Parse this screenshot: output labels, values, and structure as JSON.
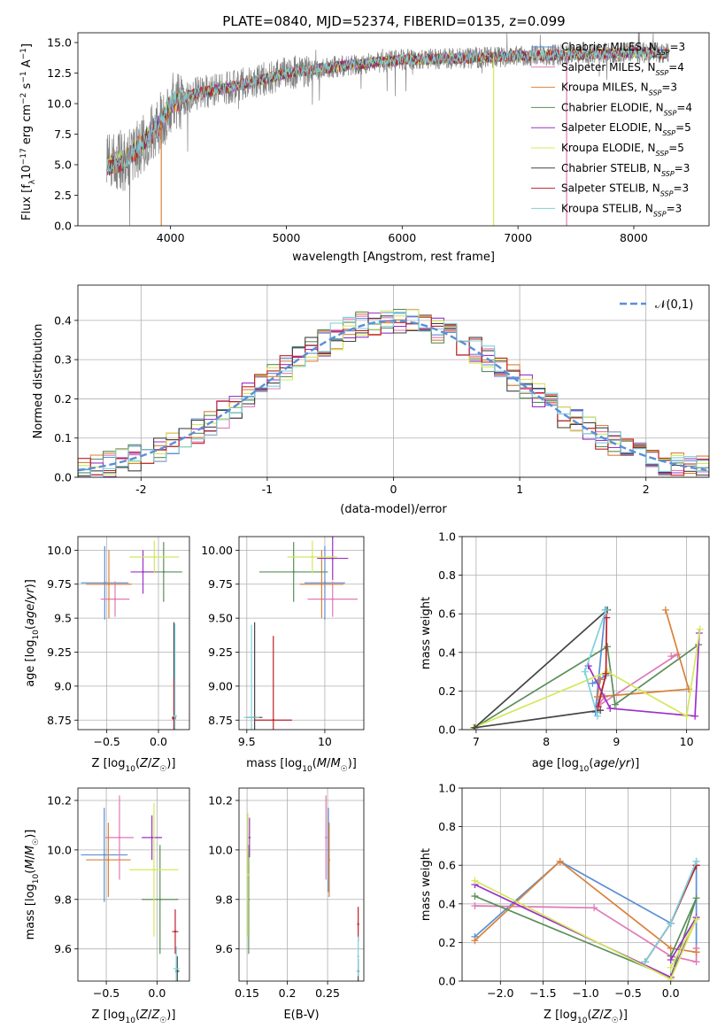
{
  "figure_title": "PLATE=0840, MJD=52374, FIBERID=0135, z=0.099",
  "colors": {
    "Chabrier MILES": "#5b8fd6",
    "Salpeter MILES": "#e07ab6",
    "Kroupa MILES": "#d9823b",
    "Chabrier ELODIE": "#5a8f5a",
    "Salpeter ELODIE": "#9b30c8",
    "Kroupa ELODIE": "#d4e85a",
    "Chabrier STELIB": "#444444",
    "Salpeter STELIB": "#c0202a",
    "Kroupa STELIB": "#7fd1dc",
    "data": "#808080",
    "normal_fit": "#5b8fd6"
  },
  "chart_data": [
    {
      "id": "spectrum",
      "type": "line",
      "xlabel": "wavelength [Angstrom, rest frame]",
      "ylabel": "Flux [f_λ10^-17 erg cm^-2 s^-1 A^-1]",
      "xlim": [
        3200,
        8650
      ],
      "ylim": [
        0,
        15.8
      ],
      "xticks": [
        4000,
        5000,
        6000,
        7000,
        8000
      ],
      "yticks": [
        0.0,
        2.5,
        5.0,
        7.5,
        10.0,
        12.5,
        15.0
      ],
      "legend": "top-right",
      "legend_entries": [
        "Chabrier MILES, N_SSP=3",
        "Salpeter MILES, N_SSP=4",
        "Kroupa MILES, N_SSP=3",
        "Chabrier ELODIE, N_SSP=4",
        "Salpeter ELODIE, N_SSP=5",
        "Kroupa ELODIE, N_SSP=5",
        "Chabrier STELIB, N_SSP=3",
        "Salpeter STELIB, N_SSP=3",
        "Kroupa STELIB, N_SSP=3"
      ],
      "continuum": {
        "x": [
          3450,
          3600,
          3700,
          3800,
          3900,
          4000,
          4200,
          4500,
          4800,
          5000,
          5500,
          6000,
          6500,
          7000,
          7500,
          8000,
          8300
        ],
        "y": [
          4.9,
          5.4,
          6.2,
          7.2,
          8.2,
          10.0,
          10.8,
          11.3,
          12.0,
          12.5,
          13.1,
          13.6,
          13.7,
          13.9,
          14.0,
          14.2,
          14.1
        ]
      },
      "data_range": [
        3450,
        8300
      ],
      "dropouts": [
        {
          "x": 3920,
          "series": "Kroupa MILES"
        },
        {
          "x": 6790,
          "series": "Kroupa ELODIE"
        },
        {
          "x": 7420,
          "series": "Salpeter MILES"
        }
      ]
    },
    {
      "id": "residuals",
      "type": "line",
      "xlabel": "(data-model)/error",
      "ylabel": "Normed distribution",
      "xlim": [
        -2.5,
        2.5
      ],
      "ylim": [
        0,
        0.49
      ],
      "xticks": [
        -2,
        -1,
        0,
        1,
        2
      ],
      "yticks": [
        0.0,
        0.1,
        0.2,
        0.3,
        0.4
      ],
      "grid": true,
      "legend": "top-right",
      "legend_entries": [
        "𝒩(0,1)"
      ],
      "bin_width": 0.1,
      "normal_curve": {
        "mean": 0,
        "sigma": 1
      }
    },
    {
      "id": "Z_vs_age",
      "type": "scatter",
      "xlabel": "Z [log10(Z/Z☉)]",
      "ylabel": "age  [log10(age/yr)]",
      "xlim": [
        -0.78,
        0.3
      ],
      "ylim": [
        8.68,
        10.1
      ],
      "xticks": [
        -0.5,
        0.0
      ],
      "xtick_labels": [
        "−0.5",
        "0.0"
      ],
      "yticks": [
        8.75,
        9.0,
        9.25,
        9.5,
        9.75,
        10.0
      ],
      "grid": true,
      "points": [
        {
          "series": "Chabrier MILES",
          "x": -0.52,
          "xerr": 0.23,
          "y": 9.76,
          "yerr": 0.27
        },
        {
          "series": "Salpeter MILES",
          "x": -0.42,
          "xerr": 0.14,
          "y": 9.64,
          "yerr": 0.13
        },
        {
          "series": "Kroupa MILES",
          "x": -0.48,
          "xerr": 0.22,
          "y": 9.75,
          "yerr": 0.25
        },
        {
          "series": "Chabrier ELODIE",
          "x": 0.05,
          "xerr": 0.18,
          "y": 9.84,
          "yerr": 0.22
        },
        {
          "series": "Salpeter ELODIE",
          "x": -0.15,
          "xerr": 0.12,
          "y": 9.84,
          "yerr": 0.16
        },
        {
          "series": "Kroupa ELODIE",
          "x": -0.04,
          "xerr": 0.24,
          "y": 9.95,
          "yerr": 0.12
        },
        {
          "series": "Chabrier STELIB",
          "x": 0.15,
          "xerr": 0.02,
          "y": 8.77,
          "yerr": 0.7
        },
        {
          "series": "Salpeter STELIB",
          "x": 0.15,
          "xerr": 0.02,
          "y": 8.76,
          "yerr": 0.3
        },
        {
          "series": "Kroupa STELIB",
          "x": 0.16,
          "xerr": 0.02,
          "y": 8.78,
          "yerr": 0.68
        }
      ]
    },
    {
      "id": "mass_vs_age",
      "type": "scatter",
      "xlabel": "mass [log10(M/M☉)]",
      "ylabel": "",
      "xlim": [
        9.45,
        10.25
      ],
      "ylim": [
        8.68,
        10.1
      ],
      "xticks": [
        9.5,
        10.0
      ],
      "yticks": [
        8.75,
        9.0,
        9.25,
        9.5,
        9.75,
        10.0
      ],
      "ytick_labels": [
        "8.75",
        "9.00",
        "9.25",
        "9.50",
        "9.75",
        "10.00"
      ],
      "grid": true,
      "points": [
        {
          "series": "Chabrier MILES",
          "x": 10.0,
          "xerr": 0.13,
          "y": 9.76,
          "yerr": 0.27
        },
        {
          "series": "Salpeter MILES",
          "x": 10.05,
          "xerr": 0.16,
          "y": 9.64,
          "yerr": 0.13
        },
        {
          "series": "Kroupa MILES",
          "x": 9.98,
          "xerr": 0.14,
          "y": 9.75,
          "yerr": 0.25
        },
        {
          "series": "Chabrier ELODIE",
          "x": 9.8,
          "xerr": 0.22,
          "y": 9.84,
          "yerr": 0.22
        },
        {
          "series": "Salpeter ELODIE",
          "x": 10.05,
          "xerr": 0.1,
          "y": 9.94,
          "yerr": 0.16
        },
        {
          "series": "Kroupa ELODIE",
          "x": 9.92,
          "xerr": 0.16,
          "y": 9.95,
          "yerr": 0.12
        },
        {
          "series": "Chabrier STELIB",
          "x": 9.55,
          "xerr": 0.05,
          "y": 8.77,
          "yerr": 0.7
        },
        {
          "series": "Salpeter STELIB",
          "x": 9.67,
          "xerr": 0.12,
          "y": 8.75,
          "yerr": 0.62
        },
        {
          "series": "Kroupa STELIB",
          "x": 9.53,
          "xerr": 0.05,
          "y": 8.77,
          "yerr": 0.68
        }
      ]
    },
    {
      "id": "age_vs_weight",
      "type": "line",
      "xlabel": "age  [log10(age/yr)]",
      "ylabel": "mass weight",
      "xlim": [
        6.8,
        10.32
      ],
      "ylim": [
        0,
        1.0
      ],
      "xticks": [
        7,
        8,
        9,
        10
      ],
      "yticks": [
        0.0,
        0.2,
        0.4,
        0.6,
        0.8,
        1.0
      ],
      "grid": true,
      "series": [
        {
          "name": "Chabrier MILES",
          "x": [
            8.84,
            8.7,
            8.85,
            8.66
          ],
          "y": [
            0.62,
            0.09,
            0.28,
            0.24
          ]
        },
        {
          "name": "Salpeter MILES",
          "x": [
            9.78,
            9.87,
            8.73,
            8.83
          ],
          "y": [
            0.38,
            0.39,
            0.12,
            0.17
          ]
        },
        {
          "name": "Kroupa MILES",
          "x": [
            9.7,
            10.03,
            8.73,
            8.77
          ],
          "y": [
            0.62,
            0.21,
            0.17,
            0.26
          ]
        },
        {
          "name": "Chabrier ELODIE",
          "x": [
            10.17,
            8.98,
            8.87,
            6.98
          ],
          "y": [
            0.44,
            0.13,
            0.43,
            0.01
          ]
        },
        {
          "name": "Salpeter ELODIE",
          "x": [
            10.18,
            10.12,
            8.91,
            8.6
          ],
          "y": [
            0.5,
            0.07,
            0.11,
            0.33
          ]
        },
        {
          "name": "Kroupa ELODIE",
          "x": [
            10.19,
            10.0,
            8.87,
            6.96
          ],
          "y": [
            0.52,
            0.07,
            0.3,
            0.01
          ]
        },
        {
          "name": "Chabrier STELIB",
          "x": [
            8.77,
            6.98,
            8.87
          ],
          "y": [
            0.1,
            0.01,
            0.62
          ]
        },
        {
          "name": "Salpeter STELIB",
          "x": [
            8.74,
            8.85,
            8.86
          ],
          "y": [
            0.12,
            0.29,
            0.58
          ]
        },
        {
          "name": "Kroupa STELIB",
          "x": [
            8.73,
            8.55,
            8.85
          ],
          "y": [
            0.07,
            0.3,
            0.62
          ]
        }
      ]
    },
    {
      "id": "Z_vs_mass",
      "type": "scatter",
      "xlabel": "Z [log10(Z/Z☉)]",
      "ylabel": "mass [log10(M/M☉)]",
      "xlim": [
        -0.78,
        0.32
      ],
      "ylim": [
        9.47,
        10.25
      ],
      "xticks": [
        -0.5,
        0.0
      ],
      "xtick_labels": [
        "−0.5",
        "0.0"
      ],
      "yticks": [
        9.6,
        9.8,
        10.0,
        10.2
      ],
      "grid": true,
      "points": [
        {
          "series": "Chabrier MILES",
          "x": -0.52,
          "xerr": 0.23,
          "y": 9.98,
          "yerr": 0.19
        },
        {
          "series": "Salpeter MILES",
          "x": -0.37,
          "xerr": 0.14,
          "y": 10.05,
          "yerr": 0.17
        },
        {
          "series": "Kroupa MILES",
          "x": -0.48,
          "xerr": 0.22,
          "y": 9.96,
          "yerr": 0.15
        },
        {
          "series": "Chabrier ELODIE",
          "x": 0.03,
          "xerr": 0.18,
          "y": 9.8,
          "yerr": 0.22
        },
        {
          "series": "Salpeter ELODIE",
          "x": -0.05,
          "xerr": 0.1,
          "y": 10.05,
          "yerr": 0.09
        },
        {
          "series": "Kroupa ELODIE",
          "x": -0.03,
          "xerr": 0.24,
          "y": 9.92,
          "yerr": 0.27
        },
        {
          "series": "Chabrier STELIB",
          "x": 0.2,
          "xerr": 0.02,
          "y": 9.51,
          "yerr": 0.06
        },
        {
          "series": "Salpeter STELIB",
          "x": 0.18,
          "xerr": 0.03,
          "y": 9.67,
          "yerr": 0.09
        },
        {
          "series": "Kroupa STELIB",
          "x": 0.19,
          "xerr": 0.03,
          "y": 9.52,
          "yerr": 0.09
        }
      ]
    },
    {
      "id": "EBV_vs_mass",
      "type": "scatter",
      "xlabel": "E(B-V)",
      "ylabel": "",
      "xlim": [
        0.14,
        0.295
      ],
      "ylim": [
        9.47,
        10.25
      ],
      "xticks": [
        0.15,
        0.2,
        0.25
      ],
      "yticks": [
        9.6,
        9.8,
        10.0,
        10.2
      ],
      "grid": true,
      "points": [
        {
          "series": "Chabrier MILES",
          "x": 0.251,
          "y": 10.0,
          "yerr": 0.17
        },
        {
          "series": "Salpeter MILES",
          "x": 0.248,
          "y": 10.05,
          "yerr": 0.17
        },
        {
          "series": "Kroupa MILES",
          "x": 0.252,
          "y": 9.96,
          "yerr": 0.15
        },
        {
          "series": "Chabrier ELODIE",
          "x": 0.152,
          "y": 9.8,
          "yerr": 0.22
        },
        {
          "series": "Salpeter ELODIE",
          "x": 0.153,
          "y": 10.05,
          "yerr": 0.08
        },
        {
          "series": "Kroupa ELODIE",
          "x": 0.151,
          "y": 9.9,
          "yerr": 0.25
        },
        {
          "series": "Chabrier STELIB",
          "x": 0.288,
          "y": 9.51,
          "yerr": 0.05
        },
        {
          "series": "Salpeter STELIB",
          "x": 0.288,
          "y": 9.7,
          "yerr": 0.07
        },
        {
          "series": "Kroupa STELIB",
          "x": 0.288,
          "y": 9.57,
          "yerr": 0.08
        }
      ]
    },
    {
      "id": "Z_vs_weight",
      "type": "line",
      "xlabel": "Z [log10(Z/Z☉)]",
      "ylabel": "mass weight",
      "xlim": [
        -2.45,
        0.45
      ],
      "ylim": [
        0,
        1.0
      ],
      "xticks": [
        -2.0,
        -1.5,
        -1.0,
        -0.5,
        0.0
      ],
      "xtick_labels": [
        "−2.0",
        "−1.5",
        "−1.0",
        "−0.5",
        "0.0"
      ],
      "yticks": [
        0.0,
        0.2,
        0.4,
        0.6,
        0.8,
        1.0
      ],
      "grid": true,
      "series": [
        {
          "name": "Chabrier MILES",
          "x": [
            -2.3,
            -1.3,
            0.0,
            0.3,
            0.3
          ],
          "y": [
            0.23,
            0.62,
            0.3,
            0.62,
            0.15
          ]
        },
        {
          "name": "Salpeter MILES",
          "x": [
            -2.3,
            -0.9,
            0.0,
            0.3,
            0.3
          ],
          "y": [
            0.39,
            0.38,
            0.13,
            0.1,
            0.17
          ]
        },
        {
          "name": "Kroupa MILES",
          "x": [
            -2.3,
            -1.3,
            0.0,
            0.3
          ],
          "y": [
            0.21,
            0.62,
            0.17,
            0.15
          ]
        },
        {
          "name": "Chabrier ELODIE",
          "x": [
            -2.3,
            0.0,
            0.3,
            0.0
          ],
          "y": [
            0.44,
            0.02,
            0.43,
            0.13
          ]
        },
        {
          "name": "Salpeter ELODIE",
          "x": [
            -2.3,
            0.0,
            0.3,
            0.0
          ],
          "y": [
            0.5,
            0.02,
            0.33,
            0.11
          ]
        },
        {
          "name": "Kroupa ELODIE",
          "x": [
            -2.3,
            0.0,
            0.3,
            0.0
          ],
          "y": [
            0.52,
            0.01,
            0.32,
            0.07
          ]
        },
        {
          "name": "Chabrier STELIB",
          "x": [
            -0.3,
            0.0,
            0.3
          ],
          "y": [
            0.1,
            0.3,
            0.6
          ]
        },
        {
          "name": "Salpeter STELIB",
          "x": [
            -0.3,
            0.0,
            0.3
          ],
          "y": [
            0.1,
            0.3,
            0.6
          ]
        },
        {
          "name": "Kroupa STELIB",
          "x": [
            -0.3,
            0.0,
            0.3
          ],
          "y": [
            0.1,
            0.3,
            0.62
          ]
        }
      ]
    }
  ]
}
